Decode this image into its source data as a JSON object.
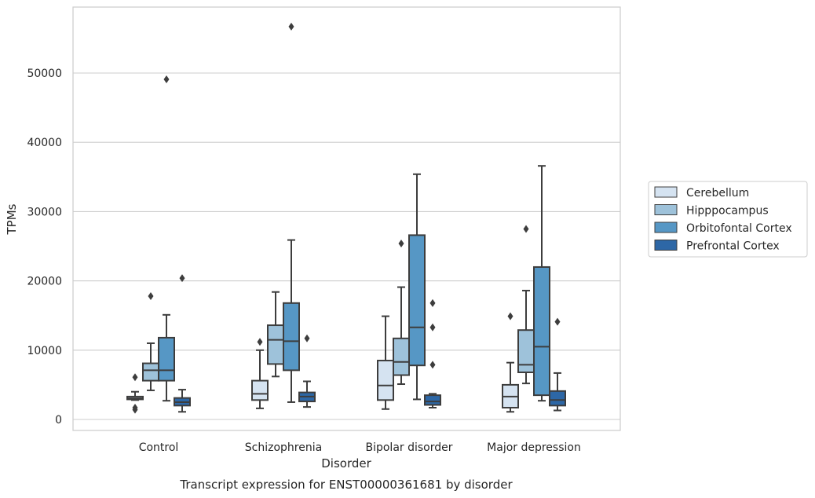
{
  "chart_data": {
    "type": "box",
    "caption": "Transcript expression for ENST00000361681 by disorder",
    "xlabel": "Disorder",
    "ylabel": "TPMs",
    "ylim": [
      -1500,
      59000
    ],
    "yticks": [
      0,
      10000,
      20000,
      30000,
      40000,
      50000
    ],
    "grid": true,
    "legend_position": "right",
    "categories": [
      "Control",
      "Schizophrenia",
      "Bipolar disorder",
      "Major depression"
    ],
    "series": [
      {
        "name": "Cerebellum",
        "color": "#d5e3f1",
        "boxes": [
          {
            "whislo": 2800,
            "q1": 2900,
            "med": 3050,
            "q3": 3300,
            "whishi": 4000,
            "fliers": [
              6100,
              1700,
              1400
            ]
          },
          {
            "whislo": 1600,
            "q1": 2800,
            "med": 3700,
            "q3": 5600,
            "whishi": 10000,
            "fliers": [
              11200
            ]
          },
          {
            "whislo": 1500,
            "q1": 2800,
            "med": 4900,
            "q3": 8500,
            "whishi": 14900,
            "fliers": []
          },
          {
            "whislo": 1100,
            "q1": 1700,
            "med": 3300,
            "q3": 5000,
            "whishi": 8200,
            "fliers": [
              14900
            ]
          }
        ]
      },
      {
        "name": "Hipppocampus",
        "color": "#9ec2da",
        "boxes": [
          {
            "whislo": 4200,
            "q1": 5600,
            "med": 7100,
            "q3": 8100,
            "whishi": 11000,
            "fliers": [
              17800
            ]
          },
          {
            "whislo": 6200,
            "q1": 8000,
            "med": 11500,
            "q3": 13600,
            "whishi": 18400,
            "fliers": []
          },
          {
            "whislo": 5100,
            "q1": 6400,
            "med": 8300,
            "q3": 11700,
            "whishi": 19100,
            "fliers": [
              25400
            ]
          },
          {
            "whislo": 5200,
            "q1": 6800,
            "med": 7900,
            "q3": 12900,
            "whishi": 18600,
            "fliers": [
              27500
            ]
          }
        ]
      },
      {
        "name": "Orbitofontal Cortex",
        "color": "#5697c5",
        "boxes": [
          {
            "whislo": 2700,
            "q1": 5600,
            "med": 7100,
            "q3": 11800,
            "whishi": 15100,
            "fliers": [
              49100
            ]
          },
          {
            "whislo": 2500,
            "q1": 7100,
            "med": 11300,
            "q3": 16800,
            "whishi": 25900,
            "fliers": [
              56700
            ]
          },
          {
            "whislo": 2900,
            "q1": 7800,
            "med": 13300,
            "q3": 26600,
            "whishi": 35400,
            "fliers": []
          },
          {
            "whislo": 2700,
            "q1": 3500,
            "med": 10500,
            "q3": 22000,
            "whishi": 36600,
            "fliers": []
          }
        ]
      },
      {
        "name": "Prefrontal Cortex",
        "color": "#2d67a6",
        "boxes": [
          {
            "whislo": 1100,
            "q1": 2000,
            "med": 2500,
            "q3": 3100,
            "whishi": 4300,
            "fliers": [
              20400
            ]
          },
          {
            "whislo": 1800,
            "q1": 2600,
            "med": 3300,
            "q3": 3900,
            "whishi": 5500,
            "fliers": [
              11700
            ]
          },
          {
            "whislo": 1700,
            "q1": 2100,
            "med": 2600,
            "q3": 3500,
            "whishi": 3700,
            "fliers": [
              16800,
              13300,
              7900
            ]
          },
          {
            "whislo": 1300,
            "q1": 2000,
            "med": 2800,
            "q3": 4100,
            "whishi": 6700,
            "fliers": [
              14100
            ]
          }
        ]
      }
    ]
  }
}
